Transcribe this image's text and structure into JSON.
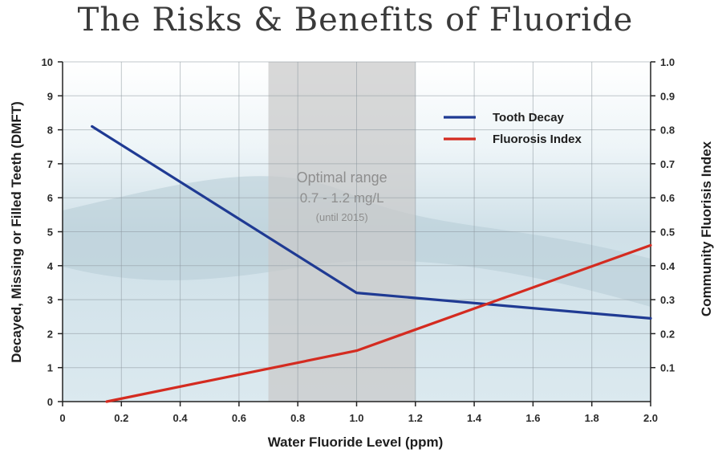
{
  "chart_data": {
    "type": "line",
    "title": "The Risks & Benefits of Fluoride",
    "xlabel": "Water Fluoride Level (ppm)",
    "ylabel": "Decayed, Missing or Filled Teeth (DMFT)",
    "ylabel_right": "Community Fluorisis Index",
    "xlim": [
      0,
      2.0
    ],
    "ylim": [
      0,
      10
    ],
    "ylim_right": [
      0,
      1.0
    ],
    "x_ticks": [
      "0",
      "0.2",
      "0.4",
      "0.6",
      "0.8",
      "1.0",
      "1.2",
      "1.4",
      "1.6",
      "1.8",
      "2.0"
    ],
    "y_ticks": [
      "0",
      "1",
      "2",
      "3",
      "4",
      "5",
      "6",
      "7",
      "8",
      "9",
      "10"
    ],
    "y_ticks_right": [
      "0.1",
      "0.2",
      "0.3",
      "0.4",
      "0.5",
      "0.6",
      "0.7",
      "0.8",
      "0.9",
      "1.0"
    ],
    "grid": true,
    "highlight_band": {
      "x_start": 0.7,
      "x_end": 1.2,
      "label": "Optimal range",
      "sublabel": "0.7 - 1.2 mg/L",
      "note": "(until 2015)",
      "color": "#c9c9c9"
    },
    "series": [
      {
        "name": "Tooth Decay",
        "axis": "left",
        "color": "#1f3a93",
        "x": [
          0.1,
          1.0,
          2.0
        ],
        "y": [
          8.1,
          3.2,
          2.45
        ]
      },
      {
        "name": "Fluorosis Index",
        "axis": "right",
        "color": "#d42b20",
        "x": [
          0.15,
          1.0,
          2.0
        ],
        "y": [
          0.0,
          0.15,
          0.46
        ]
      }
    ],
    "legend_position": "top-right"
  }
}
